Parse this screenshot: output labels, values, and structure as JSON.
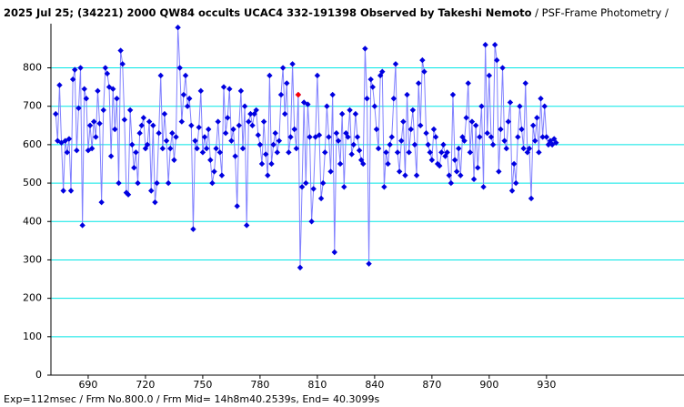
{
  "chart_data": {
    "type": "line",
    "title": "2025 Jul 25; (34221) 2000 QW84 occults UCAC4 332-191398 Observed by Takeshi Nemoto",
    "subtitle": " / PSF-Frame Photometry /",
    "footer": "Exp=112msec / Frm No.800.0 / Frm Mid= 14h8m40.2539s,  End= 40.3099s",
    "xlim": [
      670.5,
      1002
    ],
    "xticks": [
      690,
      720,
      750,
      780,
      810,
      840,
      870,
      900,
      930
    ],
    "ylim": [
      0,
      915
    ],
    "yticks": [
      0,
      100,
      200,
      300,
      400,
      500,
      600,
      700,
      800
    ],
    "grid": true,
    "grid_color": "#00e5e5",
    "line_color": "#8080ff",
    "series": [
      {
        "color": "#0000e0",
        "x": [
          673,
          674,
          675,
          676,
          677,
          678,
          679,
          680,
          681,
          682,
          683,
          684,
          685,
          686,
          687,
          688,
          689,
          690,
          691,
          692,
          693,
          694,
          695,
          696,
          697,
          698,
          699,
          700,
          701,
          702,
          703,
          704,
          705,
          706,
          707,
          708,
          709,
          710,
          711,
          712,
          713,
          714,
          715,
          716,
          717,
          718,
          719,
          720,
          721,
          722,
          723,
          724,
          725,
          726,
          727,
          728,
          729,
          730,
          731,
          732,
          733,
          734,
          735,
          736,
          737,
          738,
          739,
          740,
          741,
          742,
          743,
          744,
          745,
          746,
          747,
          748,
          749,
          750,
          751,
          752,
          753,
          754,
          755,
          756,
          757,
          758,
          759,
          760,
          761,
          762,
          763,
          764,
          765,
          766,
          767,
          768,
          769,
          770,
          771,
          772,
          773,
          774,
          775,
          776,
          777,
          778,
          779,
          780,
          781,
          782,
          783,
          784,
          785,
          786,
          787,
          788,
          789,
          790,
          791,
          792,
          793,
          794,
          795,
          796,
          797,
          798,
          799,
          800,
          801,
          802,
          803,
          804,
          805,
          806,
          807,
          808,
          809,
          810,
          811,
          812,
          813,
          814,
          815,
          816,
          817,
          818,
          819,
          820,
          821,
          822,
          823,
          824,
          825,
          826,
          827,
          828,
          829,
          830,
          831,
          832,
          833,
          834,
          835,
          836,
          837,
          838,
          839,
          840,
          841,
          842,
          843,
          844,
          845,
          846,
          847,
          848,
          849,
          850,
          851,
          852,
          853,
          854,
          855,
          856,
          857,
          858,
          859,
          860,
          861,
          862,
          863,
          864,
          865,
          866,
          867,
          868,
          869,
          870,
          871,
          872,
          873,
          874,
          875,
          876,
          877,
          878,
          879,
          880,
          881,
          882,
          883,
          884,
          885,
          886,
          887,
          888,
          889,
          890,
          891,
          892,
          893,
          894,
          895,
          896,
          897,
          898,
          899,
          900,
          901,
          902,
          903,
          904,
          905,
          906,
          907,
          908,
          909,
          910,
          911,
          912,
          913,
          914,
          915,
          916,
          917,
          918,
          919,
          920,
          921,
          922,
          923,
          924,
          925,
          926,
          927,
          928,
          929,
          930,
          931,
          932,
          933,
          934,
          935
        ],
        "values": [
          680,
          610,
          755,
          605,
          480,
          610,
          580,
          615,
          480,
          770,
          795,
          585,
          695,
          800,
          390,
          745,
          720,
          585,
          650,
          590,
          660,
          620,
          740,
          655,
          450,
          690,
          800,
          785,
          750,
          570,
          745,
          640,
          720,
          500,
          845,
          810,
          665,
          475,
          470,
          690,
          600,
          540,
          580,
          500,
          630,
          650,
          670,
          590,
          600,
          660,
          480,
          650,
          450,
          500,
          630,
          780,
          590,
          680,
          610,
          500,
          590,
          630,
          560,
          620,
          905,
          800,
          660,
          730,
          780,
          700,
          720,
          650,
          380,
          610,
          590,
          645,
          740,
          580,
          620,
          590,
          640,
          560,
          500,
          530,
          590,
          660,
          580,
          520,
          750,
          630,
          670,
          745,
          610,
          640,
          570,
          440,
          650,
          740,
          590,
          700,
          390,
          660,
          680,
          650,
          680,
          690,
          625,
          600,
          550,
          660,
          575,
          520,
          780,
          550,
          600,
          630,
          580,
          610,
          730,
          800,
          680,
          760,
          580,
          620,
          810,
          640,
          590,
          730,
          280,
          490,
          710,
          500,
          705,
          620,
          400,
          485,
          620,
          780,
          625,
          460,
          500,
          580,
          700,
          620,
          530,
          730,
          320,
          630,
          610,
          550,
          680,
          490,
          630,
          620,
          690,
          575,
          600,
          680,
          620,
          585,
          560,
          550,
          850,
          720,
          290,
          770,
          750,
          700,
          640,
          590,
          780,
          790,
          490,
          580,
          550,
          600,
          620,
          720,
          810,
          580,
          530,
          610,
          660,
          520,
          730,
          580,
          640,
          690,
          600,
          520,
          760,
          650,
          820,
          790,
          630,
          600,
          580,
          560,
          640,
          620,
          550,
          545,
          580,
          600,
          570,
          580,
          520,
          500,
          730,
          560,
          530,
          590,
          520,
          620,
          610,
          670,
          760,
          580,
          660,
          510,
          650,
          540,
          620,
          700,
          490,
          860,
          630,
          780,
          620,
          600,
          860,
          820,
          530,
          640,
          800,
          610,
          590,
          660,
          710,
          480,
          550,
          500,
          620,
          700,
          640,
          590,
          760,
          580,
          590,
          460,
          650,
          610,
          670,
          580,
          720,
          620,
          700,
          620,
          600,
          610,
          600,
          615,
          605
        ]
      },
      {
        "color": "#ff0000",
        "x": [
          800
        ],
        "values": [
          730
        ]
      }
    ]
  }
}
